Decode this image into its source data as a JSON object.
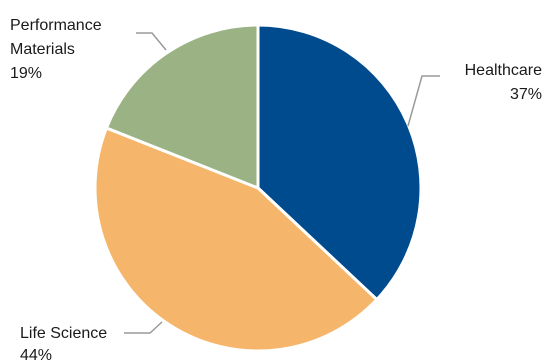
{
  "chart_data": {
    "type": "pie",
    "title": "",
    "slices": [
      {
        "label_lines": [
          "Healthcare"
        ],
        "value": 37,
        "value_label": "37%",
        "color": "#004b8d"
      },
      {
        "label_lines": [
          "Life Science"
        ],
        "value": 44,
        "value_label": "44%",
        "color": "#f5b66b"
      },
      {
        "label_lines": [
          "Performance",
          "Materials"
        ],
        "value": 19,
        "value_label": "19%",
        "color": "#9bb285"
      }
    ]
  }
}
